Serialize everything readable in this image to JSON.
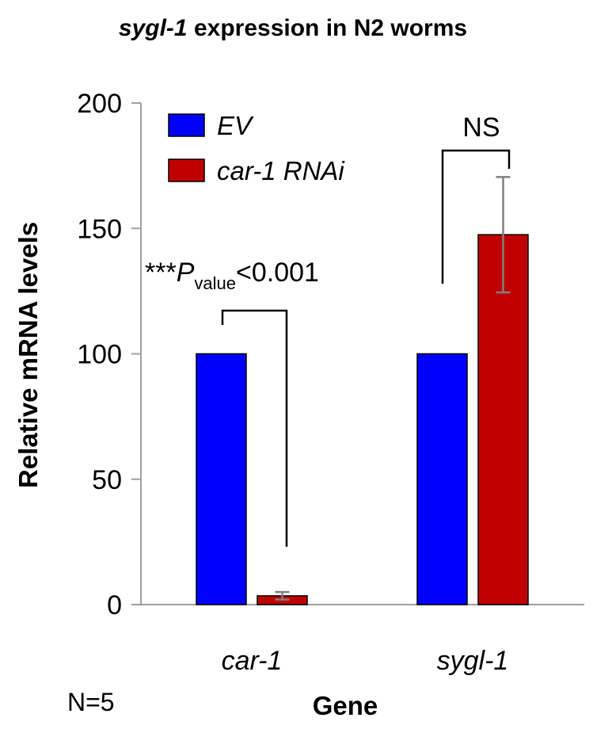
{
  "chart_data": {
    "type": "bar",
    "title_italic": "sygl-1",
    "title_rest": " expression in N2 worms",
    "xlabel": "Gene",
    "ylabel": "Relative mRNA levels",
    "ylim": [
      0,
      200
    ],
    "yticks": [
      "0",
      "50",
      "100",
      "150",
      "200"
    ],
    "categories": [
      "car-1",
      "sygl-1"
    ],
    "series": [
      {
        "name": "EV",
        "color": "#0000FF",
        "values": [
          100,
          100
        ],
        "errors": [
          0,
          0
        ]
      },
      {
        "name": "car-1 RNAi",
        "color": "#C00000",
        "values": [
          3.5,
          147.5
        ],
        "errors": [
          1.5,
          23
        ]
      }
    ],
    "annotations": {
      "pvalue_prefix": "***",
      "pvalue_p": "P",
      "pvalue_sub": "value",
      "pvalue_suffix": "<0.001",
      "ns": "NS"
    },
    "footnote": "N=5"
  }
}
